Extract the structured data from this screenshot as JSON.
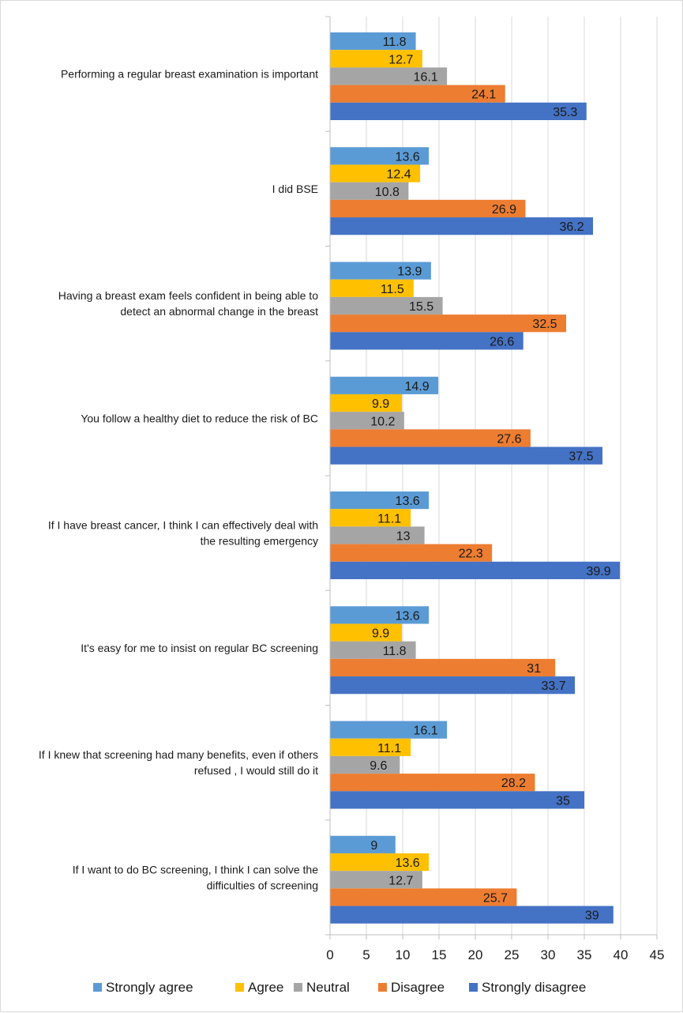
{
  "chart_data": {
    "type": "bar",
    "orientation": "horizontal",
    "categories": [
      "Performing a regular breast examination is important",
      "I did  BSE",
      "Having a breast exam feels confident in being able to detect an abnormal change in the breast",
      "You follow a healthy diet to reduce the risk of BC",
      "If I have breast cancer, I think I can effectively deal with the resulting emergency",
      "It's easy for me to insist on regular BC screening",
      "If I knew that screening had many benefits, even if others refused , I would still do it",
      "If I want to do BC screening, I think I can solve the difficulties of screening"
    ],
    "category_lines": [
      [
        "Performing a regular breast examination is important"
      ],
      [
        "I did  BSE"
      ],
      [
        "Having a breast exam feels confident in being able to",
        "detect an abnormal change in the breast"
      ],
      [
        "You follow a healthy diet to reduce the risk of BC"
      ],
      [
        "If I have breast cancer, I think I can effectively deal with",
        "the resulting emergency"
      ],
      [
        "It's easy for me to insist on regular BC screening"
      ],
      [
        "If I knew that screening had many benefits, even if others",
        "refused , I would still do it"
      ],
      [
        "If I want to do BC screening, I think I can solve the",
        "difficulties of screening"
      ]
    ],
    "series": [
      {
        "name": "Strongly agree",
        "color": "#5b9bd5",
        "values": [
          11.8,
          13.6,
          13.9,
          14.9,
          13.6,
          13.6,
          16.1,
          9
        ]
      },
      {
        "name": "Agree",
        "color": "#ffc000",
        "values": [
          12.7,
          12.4,
          11.5,
          9.9,
          11.1,
          9.9,
          11.1,
          13.6
        ]
      },
      {
        "name": "Neutral",
        "color": "#a5a5a5",
        "values": [
          16.1,
          10.8,
          15.5,
          10.2,
          13,
          11.8,
          9.6,
          12.7
        ]
      },
      {
        "name": "Disagree",
        "color": "#ed7d31",
        "values": [
          24.1,
          26.9,
          32.5,
          27.6,
          22.3,
          31,
          28.2,
          25.7
        ]
      },
      {
        "name": "Strongly disagree",
        "color": "#4472c4",
        "values": [
          35.3,
          36.2,
          26.6,
          37.5,
          39.9,
          33.7,
          35,
          39
        ]
      }
    ],
    "xlim": [
      0,
      45
    ],
    "x_ticks": [
      0,
      5,
      10,
      15,
      20,
      25,
      30,
      35,
      40,
      45
    ],
    "grid": true,
    "legend_position": "bottom"
  }
}
